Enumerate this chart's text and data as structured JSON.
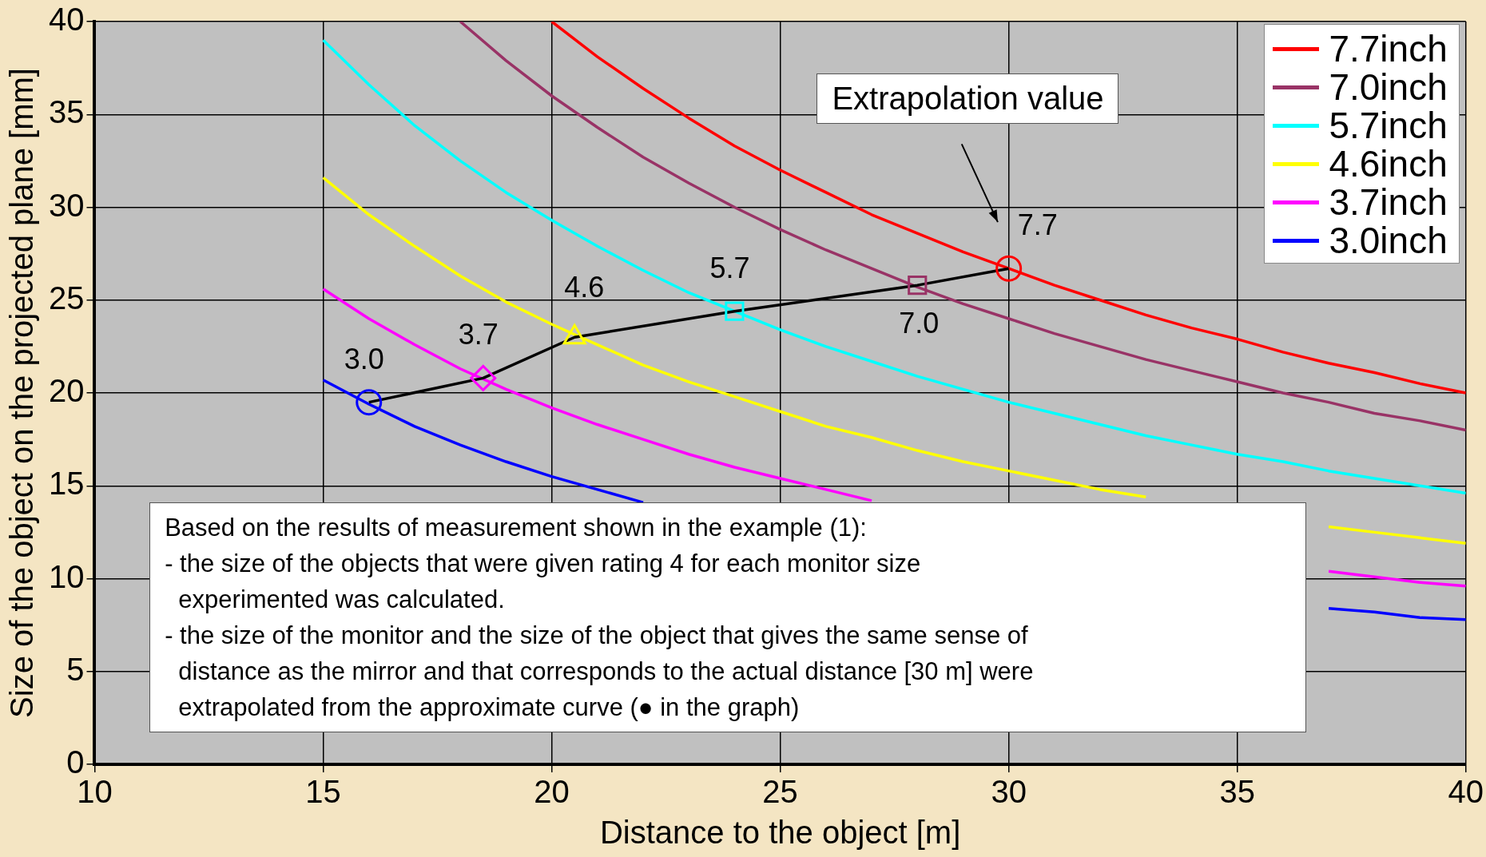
{
  "chart_data": {
    "type": "line",
    "xlabel": "Distance to the object [m]",
    "ylabel": "Size of the object on the projected plane [mm]",
    "xlim": [
      10,
      40
    ],
    "xticks": [
      10,
      15,
      20,
      25,
      30,
      35,
      40
    ],
    "ylim": [
      0,
      40
    ],
    "yticks": [
      0,
      5,
      10,
      15,
      20,
      25,
      30,
      35,
      40
    ],
    "grid": true,
    "legend": "top right",
    "marker": "none",
    "series": [
      {
        "name": "7.7inch",
        "color": "#ff0000",
        "x": [
          20,
          21,
          22,
          23,
          24,
          25,
          26,
          27,
          28,
          29,
          30,
          31,
          32,
          33,
          34,
          35,
          36,
          37,
          38,
          39,
          40
        ],
        "values": [
          40,
          38.1,
          36.4,
          34.8,
          33.3,
          32,
          30.8,
          29.6,
          28.6,
          27.6,
          26.7,
          25.8,
          25,
          24.2,
          23.5,
          22.9,
          22.2,
          21.6,
          21.1,
          20.5,
          20
        ]
      },
      {
        "name": "7.0inch",
        "color": "#993366",
        "x": [
          18,
          19,
          20,
          21,
          22,
          23,
          24,
          25,
          26,
          27,
          28,
          29,
          30,
          31,
          32,
          33,
          34,
          35,
          36,
          37,
          38,
          39,
          40
        ],
        "values": [
          40,
          37.9,
          36,
          34.3,
          32.7,
          31.3,
          30,
          28.8,
          27.7,
          26.7,
          25.7,
          24.8,
          24,
          23.2,
          22.5,
          21.8,
          21.2,
          20.6,
          20,
          19.5,
          18.9,
          18.5,
          18
        ]
      },
      {
        "name": "5.7inch",
        "color": "#00ffff",
        "x": [
          15,
          16,
          17,
          18,
          19,
          20,
          21,
          22,
          23,
          24,
          25,
          26,
          27,
          28,
          29,
          30,
          31,
          32,
          33,
          34,
          35,
          36,
          37,
          38,
          39,
          40
        ],
        "values": [
          39,
          36.6,
          34.4,
          32.5,
          30.8,
          29.3,
          27.9,
          26.6,
          25.4,
          24.4,
          23.4,
          22.5,
          21.7,
          20.9,
          20.2,
          19.5,
          18.9,
          18.3,
          17.7,
          17.2,
          16.7,
          16.3,
          15.8,
          15.4,
          15,
          14.6
        ]
      },
      {
        "name": "4.6inch",
        "color": "#ffff00",
        "x": [
          15,
          16,
          17,
          18,
          19,
          20,
          21,
          22,
          23,
          24,
          25,
          26,
          27,
          28,
          29,
          30,
          31,
          32,
          33,
          34,
          35,
          36,
          37,
          38,
          39,
          40
        ],
        "values": [
          31.6,
          29.6,
          27.9,
          26.3,
          24.9,
          23.7,
          22.6,
          21.5,
          20.6,
          19.8,
          19,
          18.2,
          17.6,
          16.9,
          16.3,
          15.8,
          15.3,
          14.8,
          14.4,
          null,
          null,
          null,
          12.8,
          12.5,
          12.2,
          11.9
        ]
      },
      {
        "name": "3.7inch",
        "color": "#ff00ff",
        "x": [
          15,
          16,
          17,
          18,
          19,
          20,
          21,
          22,
          23,
          24,
          25,
          26,
          27,
          28,
          29,
          30,
          31,
          32,
          33,
          34,
          35,
          36,
          37,
          38,
          39,
          40
        ],
        "values": [
          25.6,
          24,
          22.6,
          21.3,
          20.2,
          19.2,
          18.3,
          17.5,
          16.7,
          16,
          15.4,
          14.8,
          14.2,
          null,
          null,
          null,
          null,
          null,
          null,
          null,
          null,
          null,
          10.4,
          10.1,
          9.8,
          9.6
        ]
      },
      {
        "name": "3.0inch",
        "color": "#0000ff",
        "x": [
          15,
          16,
          17,
          18,
          19,
          20,
          21,
          22,
          23,
          24,
          25,
          26,
          27,
          28,
          29,
          30,
          31,
          32,
          33,
          34,
          35,
          36,
          37,
          38,
          39,
          40
        ],
        "values": [
          20.7,
          19.4,
          18.2,
          17.2,
          16.3,
          15.5,
          14.8,
          14.1,
          null,
          null,
          null,
          null,
          null,
          null,
          null,
          null,
          null,
          null,
          null,
          null,
          null,
          null,
          8.4,
          8.2,
          7.9,
          7.8
        ]
      },
      {
        "type": "line",
        "color": "#000000",
        "x": [
          16,
          18.5,
          20.5,
          24,
          28,
          30
        ],
        "values": [
          19.5,
          20.8,
          23,
          24.4,
          25.8,
          26.7
        ]
      },
      {
        "type": "scatter",
        "color": "#0000ff",
        "marker": "circle",
        "x": [
          16
        ],
        "values": [
          19.5
        ]
      },
      {
        "type": "scatter",
        "color": "#ff00ff",
        "marker": "diamond",
        "x": [
          18.5
        ],
        "values": [
          20.8
        ]
      },
      {
        "type": "scatter",
        "color": "#ffff00",
        "marker": "triangle",
        "x": [
          20.5
        ],
        "values": [
          23
        ]
      },
      {
        "type": "scatter",
        "color": "#00ffff",
        "marker": "square",
        "x": [
          24
        ],
        "values": [
          24.4
        ]
      },
      {
        "type": "scatter",
        "color": "#993366",
        "marker": "square",
        "x": [
          28
        ],
        "values": [
          25.8
        ]
      },
      {
        "type": "scatter",
        "color": "#ff0000",
        "marker": "circle",
        "x": [
          30
        ],
        "values": [
          26.7
        ]
      }
    ],
    "annotations": [
      {
        "text": "3.0",
        "x": 16,
        "y": 19.5
      },
      {
        "text": "3.7",
        "x": 18.5,
        "y": 20.8
      },
      {
        "text": "4.6",
        "x": 20.5,
        "y": 23
      },
      {
        "text": "5.7",
        "x": 24,
        "y": 24.4
      },
      {
        "text": "7.0",
        "x": 28,
        "y": 25.8
      },
      {
        "text": "7.7",
        "x": 30,
        "y": 26.7
      },
      "Extrapolation value",
      "Based on the results of measurement shown in the example (1):\n- the size of the objects that were given rating 4 for each monitor size\n  experimented was calculated.\n- the size of the monitor and the size of the object that gives the same sense of\n  distance as the mirror and that corresponds to the actual distance [30 m] were\n  extrapolated from the approximate curve (● in the graph)"
    ]
  }
}
